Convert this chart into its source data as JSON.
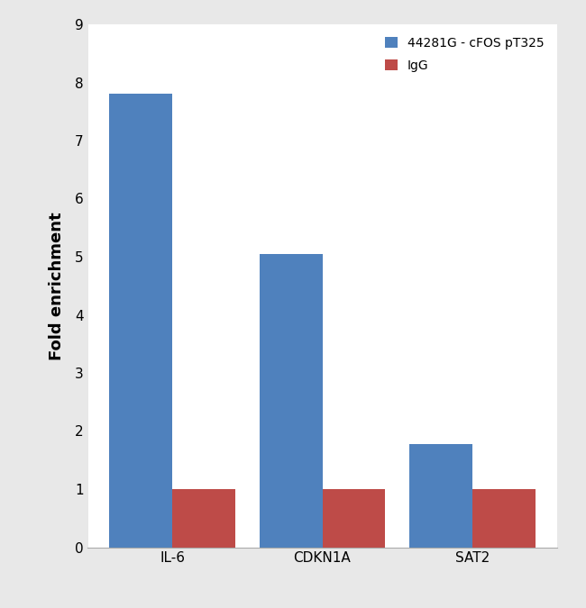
{
  "categories": [
    "IL-6",
    "CDKN1A",
    "SAT2"
  ],
  "series": [
    {
      "name": "44281G - cFOS pT325",
      "values": [
        7.8,
        5.05,
        1.78
      ],
      "color": "#4f81bd"
    },
    {
      "name": "IgG",
      "values": [
        1.0,
        1.0,
        1.0
      ],
      "color": "#be4b48"
    }
  ],
  "ylabel": "Fold enrichment",
  "ylim": [
    0,
    9
  ],
  "yticks": [
    0,
    1,
    2,
    3,
    4,
    5,
    6,
    7,
    8,
    9
  ],
  "bar_width": 0.42,
  "background_color": "#ffffff",
  "figure_background": "#e8e8e8",
  "legend_fontsize": 10,
  "axis_label_fontsize": 13,
  "tick_fontsize": 11,
  "spine_color": "#aaaaaa"
}
